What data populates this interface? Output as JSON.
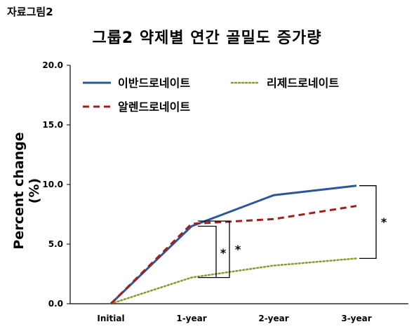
{
  "figure_label": "자료그림2",
  "chart_data": {
    "type": "line",
    "title": "그룹2 약제별 연간 골밀도 증가량",
    "ylabel": "Percent change (%)",
    "xlabel": "",
    "categories": [
      "Initial",
      "1-year",
      "2-year",
      "3-year"
    ],
    "ylim": [
      0,
      20
    ],
    "yticks": [
      "0.0",
      "5.0",
      "10.0",
      "15.0",
      "20.0"
    ],
    "series": [
      {
        "name": "이반드로네이트",
        "values": [
          0,
          6.5,
          9.1,
          9.9
        ],
        "color": "#2b5797",
        "style": "solid"
      },
      {
        "name": "리제드로네이트",
        "values": [
          0,
          2.2,
          3.2,
          3.8
        ],
        "color": "#8a9a2c",
        "style": "dotted"
      },
      {
        "name": "알렌드로네이트",
        "values": [
          0,
          6.7,
          7.1,
          8.2
        ],
        "color": "#a02020",
        "style": "dashed"
      }
    ],
    "annotations": [
      "*",
      "*",
      "*"
    ],
    "legend": "top",
    "grid": false
  }
}
